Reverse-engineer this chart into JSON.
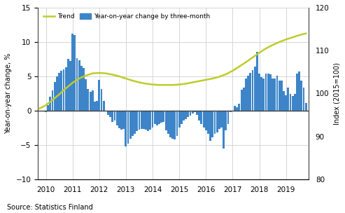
{
  "ylabel_left": "Year-on-year change, %",
  "ylabel_right": "Index (2015=100)",
  "source": "Source: Statistics Finland",
  "ylim_left": [
    -10,
    15
  ],
  "ylim_right": [
    80,
    120
  ],
  "yticks_left": [
    -10,
    -5,
    0,
    5,
    10,
    15
  ],
  "yticks_right": [
    80,
    90,
    100,
    110,
    120
  ],
  "bar_color": "#3d85c8",
  "trend_color": "#bfcc2a",
  "bar_width": 0.075,
  "legend_trend": "Trend",
  "legend_bar": "Year-on-year change by three-month",
  "bar_data": {
    "dates": [
      2010.0,
      2010.083,
      2010.167,
      2010.25,
      2010.333,
      2010.417,
      2010.5,
      2010.583,
      2010.667,
      2010.75,
      2010.833,
      2010.917,
      2011.0,
      2011.083,
      2011.167,
      2011.25,
      2011.333,
      2011.417,
      2011.5,
      2011.583,
      2011.667,
      2011.75,
      2011.833,
      2011.917,
      2012.0,
      2012.083,
      2012.167,
      2012.25,
      2012.333,
      2012.417,
      2012.5,
      2012.583,
      2012.667,
      2012.75,
      2012.833,
      2012.917,
      2013.0,
      2013.083,
      2013.167,
      2013.25,
      2013.333,
      2013.417,
      2013.5,
      2013.583,
      2013.667,
      2013.75,
      2013.833,
      2013.917,
      2014.0,
      2014.083,
      2014.167,
      2014.25,
      2014.333,
      2014.417,
      2014.5,
      2014.583,
      2014.667,
      2014.75,
      2014.833,
      2014.917,
      2015.0,
      2015.083,
      2015.167,
      2015.25,
      2015.333,
      2015.417,
      2015.5,
      2015.583,
      2015.667,
      2015.75,
      2015.833,
      2015.917,
      2016.0,
      2016.083,
      2016.167,
      2016.25,
      2016.333,
      2016.417,
      2016.5,
      2016.583,
      2016.667,
      2016.75,
      2016.833,
      2016.917,
      2017.0,
      2017.083,
      2017.167,
      2017.25,
      2017.333,
      2017.417,
      2017.5,
      2017.583,
      2017.667,
      2017.75,
      2017.833,
      2017.917,
      2018.0,
      2018.083,
      2018.167,
      2018.25,
      2018.333,
      2018.417,
      2018.5,
      2018.583,
      2018.667,
      2018.75,
      2018.833,
      2018.917,
      2019.0,
      2019.083,
      2019.167,
      2019.25,
      2019.333,
      2019.417,
      2019.5,
      2019.583,
      2019.667,
      2019.75
    ],
    "values": [
      -0.2,
      0.8,
      2.0,
      3.0,
      4.2,
      5.0,
      5.5,
      5.8,
      6.0,
      6.3,
      7.5,
      7.2,
      11.2,
      11.0,
      7.6,
      7.3,
      6.5,
      6.2,
      4.6,
      3.2,
      2.8,
      3.0,
      1.3,
      1.4,
      4.5,
      3.2,
      1.4,
      -0.1,
      -0.6,
      -0.9,
      -1.6,
      -1.4,
      -2.1,
      -2.5,
      -2.8,
      -2.6,
      -5.2,
      -4.8,
      -4.1,
      -3.7,
      -3.4,
      -3.0,
      -2.8,
      -2.7,
      -2.6,
      -2.8,
      -3.0,
      -2.8,
      -2.4,
      -1.9,
      -2.1,
      -1.9,
      -1.7,
      -1.6,
      -2.9,
      -3.4,
      -3.9,
      -4.1,
      -4.2,
      -3.7,
      -2.4,
      -1.9,
      -1.4,
      -1.2,
      -0.9,
      -0.7,
      -0.4,
      -0.2,
      -0.6,
      -1.4,
      -1.9,
      -2.4,
      -2.9,
      -3.4,
      -4.4,
      -3.9,
      -3.4,
      -3.2,
      -2.7,
      -2.4,
      -5.5,
      -2.9,
      -1.9,
      -0.2,
      -0.1,
      0.7,
      0.5,
      1.0,
      3.1,
      3.4,
      4.7,
      5.1,
      5.5,
      5.9,
      6.4,
      8.6,
      5.4,
      4.9,
      4.7,
      5.4,
      5.4,
      5.3,
      4.7,
      4.7,
      5.1,
      4.4,
      4.4,
      2.9,
      2.2,
      3.4,
      2.4,
      2.1,
      2.4,
      5.4,
      5.7,
      4.4,
      3.4,
      1.1
    ]
  },
  "trend_data": {
    "dates": [
      2009.75,
      2009.85,
      2010.0,
      2010.25,
      2010.5,
      2010.75,
      2011.0,
      2011.25,
      2011.5,
      2011.75,
      2012.0,
      2012.25,
      2012.5,
      2012.75,
      2013.0,
      2013.25,
      2013.5,
      2013.75,
      2014.0,
      2014.25,
      2014.5,
      2014.75,
      2015.0,
      2015.25,
      2015.5,
      2015.75,
      2016.0,
      2016.25,
      2016.5,
      2016.75,
      2017.0,
      2017.25,
      2017.5,
      2017.75,
      2018.0,
      2018.25,
      2018.5,
      2018.75,
      2019.0,
      2019.25,
      2019.5,
      2019.75
    ],
    "index_values": [
      96.5,
      96.8,
      97.3,
      98.5,
      99.8,
      101.2,
      102.5,
      103.5,
      104.2,
      104.7,
      104.8,
      104.7,
      104.4,
      104.0,
      103.5,
      103.0,
      102.6,
      102.3,
      102.1,
      102.0,
      102.0,
      102.0,
      102.1,
      102.3,
      102.6,
      102.9,
      103.2,
      103.5,
      103.9,
      104.5,
      105.3,
      106.3,
      107.3,
      108.4,
      109.5,
      110.5,
      111.3,
      112.0,
      112.6,
      113.1,
      113.6,
      114.0
    ]
  },
  "xticks": [
    2010,
    2011,
    2012,
    2013,
    2014,
    2015,
    2016,
    2017,
    2018,
    2019
  ],
  "xlim": [
    2009.7,
    2019.85
  ]
}
